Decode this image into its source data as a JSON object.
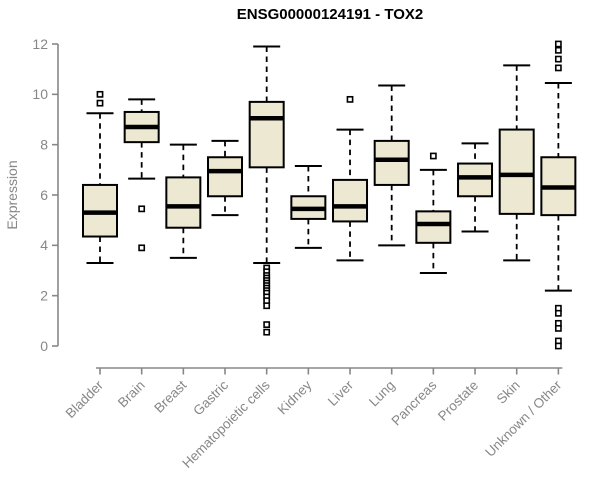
{
  "figure": {
    "title": "ENSG00000124191 - TOX2",
    "ylabel": "Expression"
  },
  "chart_data": {
    "type": "boxplot",
    "title": "ENSG00000124191 - TOX2",
    "xlabel": "",
    "ylabel": "Expression",
    "ylim": [
      0,
      12
    ],
    "yticks": [
      0,
      2,
      4,
      6,
      8,
      10,
      12
    ],
    "grid": false,
    "legend": false,
    "colors": {
      "box_fill": "#EDE8D1",
      "box_border": "#000000",
      "median": "#000000",
      "whisker": "#000000",
      "axis": "#878787",
      "title": "#000000",
      "background": "#ffffff"
    },
    "categories": [
      "Bladder",
      "Brain",
      "Breast",
      "Gastric",
      "Hematopoietic cells",
      "Kidney",
      "Liver",
      "Lung",
      "Pancreas",
      "Prostate",
      "Skin",
      "Unknown / Other"
    ],
    "series": [
      {
        "category": "Bladder",
        "whisker_low": 3.3,
        "q1": 4.35,
        "median": 5.3,
        "q3": 6.4,
        "whisker_high": 9.25,
        "outliers": [
          10.0,
          9.65
        ]
      },
      {
        "category": "Brain",
        "whisker_low": 6.65,
        "q1": 8.1,
        "median": 8.7,
        "q3": 9.3,
        "whisker_high": 9.8,
        "outliers": [
          5.45,
          3.9
        ]
      },
      {
        "category": "Breast",
        "whisker_low": 3.5,
        "q1": 4.7,
        "median": 5.55,
        "q3": 6.7,
        "whisker_high": 8.0,
        "outliers": []
      },
      {
        "category": "Gastric",
        "whisker_low": 5.2,
        "q1": 5.95,
        "median": 6.95,
        "q3": 7.5,
        "whisker_high": 8.15,
        "outliers": []
      },
      {
        "category": "Hematopoietic cells",
        "whisker_low": 3.3,
        "q1": 7.1,
        "median": 9.05,
        "q3": 9.7,
        "whisker_high": 11.9,
        "outliers": [
          3.1,
          2.95,
          2.8,
          2.7,
          2.6,
          2.5,
          2.4,
          2.3,
          2.2,
          2.1,
          1.95,
          1.8,
          1.6,
          0.85,
          0.55
        ]
      },
      {
        "category": "Kidney",
        "whisker_low": 3.9,
        "q1": 5.05,
        "median": 5.45,
        "q3": 5.95,
        "whisker_high": 7.15,
        "outliers": []
      },
      {
        "category": "Liver",
        "whisker_low": 3.4,
        "q1": 4.95,
        "median": 5.55,
        "q3": 6.6,
        "whisker_high": 8.6,
        "outliers": [
          9.8
        ]
      },
      {
        "category": "Lung",
        "whisker_low": 4.0,
        "q1": 6.4,
        "median": 7.4,
        "q3": 8.15,
        "whisker_high": 10.35,
        "outliers": []
      },
      {
        "category": "Pancreas",
        "whisker_low": 2.9,
        "q1": 4.1,
        "median": 4.85,
        "q3": 5.35,
        "whisker_high": 7.0,
        "outliers": [
          7.55
        ]
      },
      {
        "category": "Prostate",
        "whisker_low": 4.55,
        "q1": 5.95,
        "median": 6.7,
        "q3": 7.25,
        "whisker_high": 8.05,
        "outliers": []
      },
      {
        "category": "Skin",
        "whisker_low": 3.4,
        "q1": 5.25,
        "median": 6.8,
        "q3": 8.6,
        "whisker_high": 11.15,
        "outliers": []
      },
      {
        "category": "Unknown / Other",
        "whisker_low": 2.2,
        "q1": 5.2,
        "median": 6.3,
        "q3": 7.5,
        "whisker_high": 10.45,
        "outliers": [
          12.0,
          11.75,
          11.4,
          11.05,
          1.5,
          1.3,
          0.9,
          0.7,
          0.2,
          0.0
        ]
      }
    ]
  }
}
